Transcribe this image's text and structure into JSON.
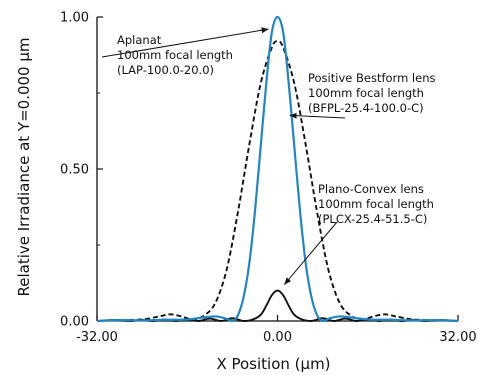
{
  "chart_data": {
    "type": "line",
    "title": "",
    "xlabel": "X Position (µm)",
    "ylabel": "Relative Irradiance at Y=0.000 µm",
    "xlim": [
      -32,
      32
    ],
    "ylim": [
      0,
      1
    ],
    "x_ticks": [
      "-32.00",
      "0.00",
      "32.00"
    ],
    "y_ticks": [
      "0.00",
      "0.50",
      "1.00"
    ],
    "grid": false,
    "series": [
      {
        "key": "aplanat",
        "color": "#1f87c4",
        "style": "solid",
        "x": [
          -32,
          -28,
          -24,
          -20,
          -16,
          -13,
          -11,
          -9.5,
          -8,
          -7,
          -6,
          -5,
          -4,
          -3,
          -2,
          -1,
          0,
          1,
          2,
          3,
          4,
          5,
          6,
          7,
          8,
          9.5,
          11,
          13,
          16,
          20,
          24,
          28,
          32
        ],
        "y": [
          0.0,
          0.003,
          0.002,
          0.004,
          0.005,
          0.012,
          0.015,
          0.01,
          0.0,
          0.02,
          0.08,
          0.19,
          0.36,
          0.57,
          0.78,
          0.95,
          1.0,
          0.95,
          0.78,
          0.57,
          0.36,
          0.19,
          0.08,
          0.02,
          0.0,
          0.01,
          0.015,
          0.012,
          0.005,
          0.004,
          0.002,
          0.003,
          0.0
        ]
      },
      {
        "key": "bestform",
        "color": "#111111",
        "style": "dashed",
        "x": [
          -32,
          -28,
          -24,
          -21,
          -19,
          -17,
          -15,
          -13,
          -11,
          -9,
          -7,
          -5,
          -3,
          -1,
          0,
          1,
          3,
          5,
          7,
          9,
          11,
          13,
          15,
          17,
          19,
          21,
          24,
          28,
          32
        ],
        "y": [
          0.0,
          0.003,
          0.005,
          0.015,
          0.022,
          0.015,
          0.005,
          0.018,
          0.06,
          0.17,
          0.36,
          0.58,
          0.78,
          0.9,
          0.92,
          0.9,
          0.78,
          0.58,
          0.36,
          0.17,
          0.06,
          0.018,
          0.005,
          0.015,
          0.022,
          0.015,
          0.005,
          0.003,
          0.0
        ]
      },
      {
        "key": "planoconvex",
        "color": "#111111",
        "style": "solid",
        "x": [
          -32,
          -29,
          -26,
          -24,
          -22,
          -20,
          -18,
          -16,
          -14,
          -12,
          -10,
          -8,
          -6,
          -4.5,
          -3,
          -2,
          -1,
          0,
          1,
          2,
          3,
          4.5,
          6,
          8,
          10,
          12,
          14,
          16,
          18,
          20,
          22,
          24,
          26,
          29,
          32
        ],
        "y": [
          0.0,
          0.003,
          0.0,
          0.004,
          0.0,
          0.005,
          0.0,
          0.006,
          0.0,
          0.008,
          0.0,
          0.009,
          0.0,
          0.004,
          0.02,
          0.05,
          0.085,
          0.1,
          0.085,
          0.05,
          0.02,
          0.004,
          0.0,
          0.009,
          0.0,
          0.008,
          0.0,
          0.006,
          0.0,
          0.005,
          0.0,
          0.004,
          0.0,
          0.003,
          0.0
        ]
      }
    ],
    "annotations": [
      {
        "key": "aplanat",
        "lines": [
          "Aplanat",
          "100mm focal length",
          "(LAP-100.0-20.0)"
        ]
      },
      {
        "key": "bestform",
        "lines": [
          "Positive Bestform lens",
          "100mm focal length",
          "(BFPL-25.4-100.0-C)"
        ]
      },
      {
        "key": "planoconvex",
        "lines": [
          "Plano-Convex lens",
          "100mm focal length",
          "(PLCX-25.4-51.5-C)"
        ]
      }
    ]
  }
}
